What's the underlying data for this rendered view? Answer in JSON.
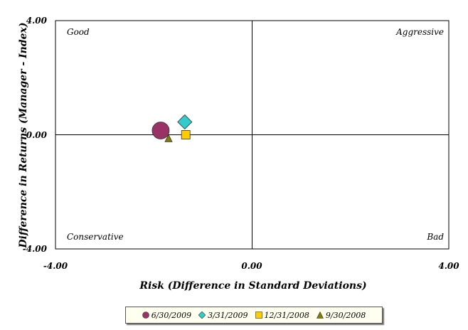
{
  "chart_data": {
    "type": "scatter",
    "xlabel": "Risk (Difference in Standard Deviations)",
    "ylabel": "Difference in Returns (Manager - Index)",
    "xlim": [
      -4,
      4
    ],
    "ylim": [
      -4,
      4
    ],
    "x_ticks": [
      "-4.00",
      "0.00",
      "4.00"
    ],
    "y_ticks": [
      "-4.00",
      "0.00",
      "4.00"
    ],
    "grid": false,
    "legend_position": "bottom",
    "quadrant_labels": {
      "top_left": "Good",
      "top_right": "Aggressive",
      "bottom_left": "Conservative",
      "bottom_right": "Bad"
    },
    "series": [
      {
        "name": "6/30/2009",
        "marker": "circle",
        "color": "#993366",
        "x": -1.86,
        "y": 0.15
      },
      {
        "name": "3/31/2009",
        "marker": "diamond",
        "color": "#33cccc",
        "x": -1.37,
        "y": 0.45
      },
      {
        "name": "12/31/2008",
        "marker": "square",
        "color": "#ffcc00",
        "x": -1.35,
        "y": 0.0
      },
      {
        "name": "9/30/2008",
        "marker": "triangle",
        "color": "#808000",
        "x": -1.7,
        "y": -0.12
      }
    ]
  }
}
